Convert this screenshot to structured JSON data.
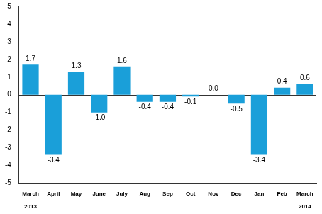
{
  "chart_data": {
    "type": "bar",
    "categories": [
      "March",
      "April",
      "May",
      "June",
      "July",
      "Aug",
      "Sep",
      "Oct",
      "Nov",
      "Dec",
      "Jan",
      "Feb",
      "March"
    ],
    "values": [
      1.7,
      -3.4,
      1.3,
      -1.0,
      1.6,
      -0.4,
      -0.4,
      -0.1,
      0.0,
      -0.5,
      -3.4,
      0.4,
      0.6
    ],
    "value_labels": [
      "1.7",
      "-3.4",
      "1.3",
      "-1.0",
      "1.6",
      "-0.4",
      "-0.4",
      "-0.1",
      "0.0",
      "-0.5",
      "-3.4",
      "0.4",
      "0.6"
    ],
    "data_labels": true,
    "color": "#1a9fd9",
    "ylim": [
      -5,
      5
    ],
    "yticks": [
      -5,
      -4,
      -3,
      -2,
      -1,
      0,
      1,
      2,
      3,
      4,
      5
    ],
    "grid": false,
    "annotations": [
      {
        "text": "2013",
        "x": 0
      },
      {
        "text": "2014",
        "x": 12
      }
    ]
  }
}
